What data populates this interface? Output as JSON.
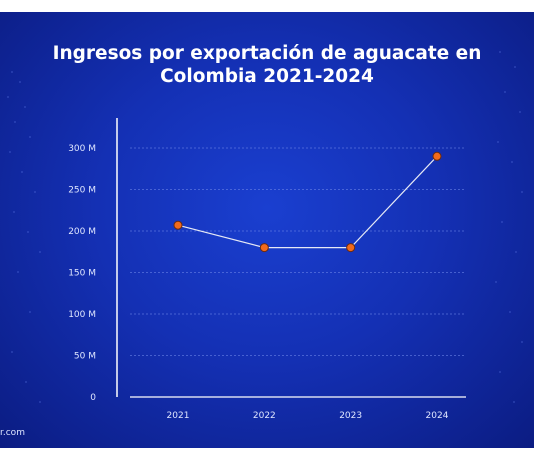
{
  "chart_data": {
    "type": "line",
    "title": "Ingresos por exportación de aguacate en Colombia 2021-2024",
    "xlabel": "",
    "ylabel": "",
    "x": [
      "2021",
      "2022",
      "2023",
      "2024"
    ],
    "series": [
      {
        "values": [
          207,
          180,
          180,
          290
        ]
      }
    ],
    "ylim": [
      0,
      300
    ],
    "yticks": [
      0,
      50,
      100,
      150,
      200,
      250,
      300
    ],
    "ytick_labels": [
      "0",
      "50 M",
      "100 M",
      "150 M",
      "200 M",
      "250 M",
      "300 M"
    ],
    "grid": true,
    "legend": "none",
    "colors": {
      "line": "#e6e9f5",
      "marker": "#f26a1b",
      "marker_edge": "#6b2a10",
      "grid": "#6a82e6",
      "axis": "#ffffff"
    }
  },
  "footer": {
    "watermark": "r.com"
  }
}
